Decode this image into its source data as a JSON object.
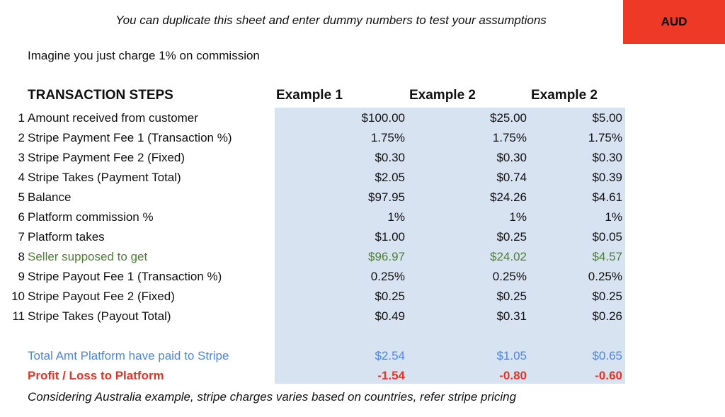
{
  "page": {
    "top_note": "You can duplicate this sheet and enter dummy numbers to test your assumptions",
    "currency_badge": "AUD",
    "intro": "Imagine you just charge 1% on commission",
    "footer_note": "Considering Australia example, stripe charges varies based on countries, refer stripe pricing"
  },
  "table": {
    "title": "TRANSACTION STEPS",
    "columns": [
      "Example 1",
      "Example 2",
      "Example 2"
    ],
    "rows": [
      {
        "num": "1",
        "label": "Amount received from customer",
        "values": [
          "$100.00",
          "$25.00",
          "$5.00"
        ]
      },
      {
        "num": "2",
        "label": "Stripe Payment Fee 1 (Transaction %)",
        "values": [
          "1.75%",
          "1.75%",
          "1.75%"
        ]
      },
      {
        "num": "3",
        "label": "Stripe Payment Fee 2 (Fixed)",
        "values": [
          "$0.30",
          "$0.30",
          "$0.30"
        ]
      },
      {
        "num": "4",
        "label": "Stripe Takes (Payment Total)",
        "values": [
          "$2.05",
          "$0.74",
          "$0.39"
        ]
      },
      {
        "num": "5",
        "label": "Balance",
        "values": [
          "$97.95",
          "$24.26",
          "$4.61"
        ]
      },
      {
        "num": "6",
        "label": "Platform commission %",
        "values": [
          "1%",
          "1%",
          "1%"
        ]
      },
      {
        "num": "7",
        "label": "Platform takes",
        "values": [
          "$1.00",
          "$0.25",
          "$0.05"
        ]
      },
      {
        "num": "8",
        "label": "Seller supposed to get",
        "values": [
          "$96.97",
          "$24.02",
          "$4.57"
        ]
      },
      {
        "num": "9",
        "label": "Stripe Payout Fee 1 (Transaction %)",
        "values": [
          "0.25%",
          "0.25%",
          "0.25%"
        ]
      },
      {
        "num": "10",
        "label": "Stripe Payout Fee 2 (Fixed)",
        "values": [
          "$0.25",
          "$0.25",
          "$0.25"
        ]
      },
      {
        "num": "11",
        "label": "Stripe Takes (Payout Total)",
        "values": [
          "$0.49",
          "$0.31",
          "$0.26"
        ]
      }
    ],
    "summary_rows": [
      {
        "label": "Total Amt Platform have paid to Stripe",
        "values": [
          "$2.54",
          "$1.05",
          "$0.65"
        ]
      },
      {
        "label": "Profit / Loss to Platform",
        "values": [
          "-1.54",
          "-0.80",
          "-0.60"
        ]
      }
    ]
  },
  "colors": {
    "badge_bg": "#ee3926",
    "highlight_bg": "#d7e3f0",
    "seller_green": "#4d8034",
    "total_blue": "#4a86e8",
    "profit_red": "#e73425"
  }
}
